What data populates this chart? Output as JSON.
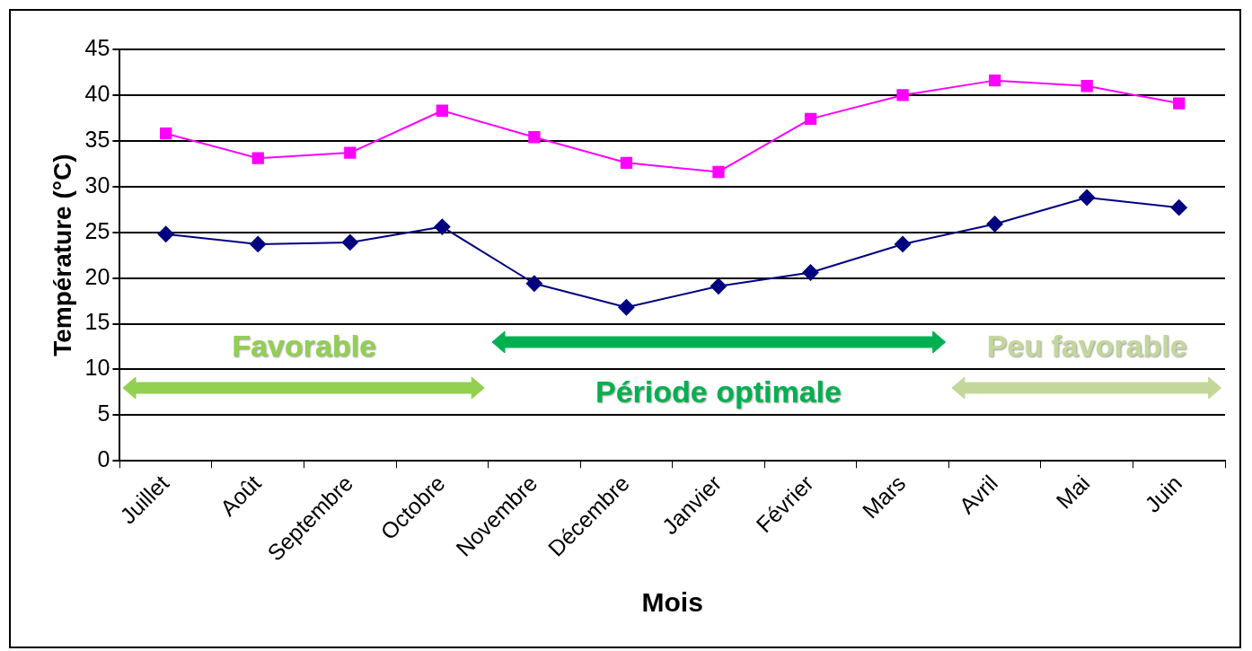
{
  "chart_data": {
    "type": "line",
    "xlabel": "Mois",
    "ylabel": "Température (°C)",
    "categories": [
      "Juillet",
      "Août",
      "Septembre",
      "Octobre",
      "Novembre",
      "Décembre",
      "Janvier",
      "Février",
      "Mars",
      "Avril",
      "Mai",
      "Juin"
    ],
    "series": [
      {
        "color": "#ff00ff",
        "marker": "square",
        "values": [
          35.8,
          33.1,
          33.7,
          38.3,
          35.4,
          32.6,
          31.6,
          37.4,
          40.0,
          41.6,
          41.0,
          39.1
        ]
      },
      {
        "color": "#000080",
        "marker": "diamond",
        "values": [
          24.8,
          23.7,
          23.9,
          25.6,
          19.4,
          16.8,
          19.1,
          20.6,
          23.7,
          25.9,
          28.8,
          27.7
        ]
      }
    ],
    "ylim": [
      0,
      45
    ],
    "yticks": [
      0,
      5,
      10,
      15,
      20,
      25,
      30,
      35,
      40,
      45
    ],
    "grid": "y",
    "legend": false,
    "line_style": "solid",
    "annotations": [
      "Favorable",
      "Période optimale",
      "Peu favorable"
    ]
  }
}
